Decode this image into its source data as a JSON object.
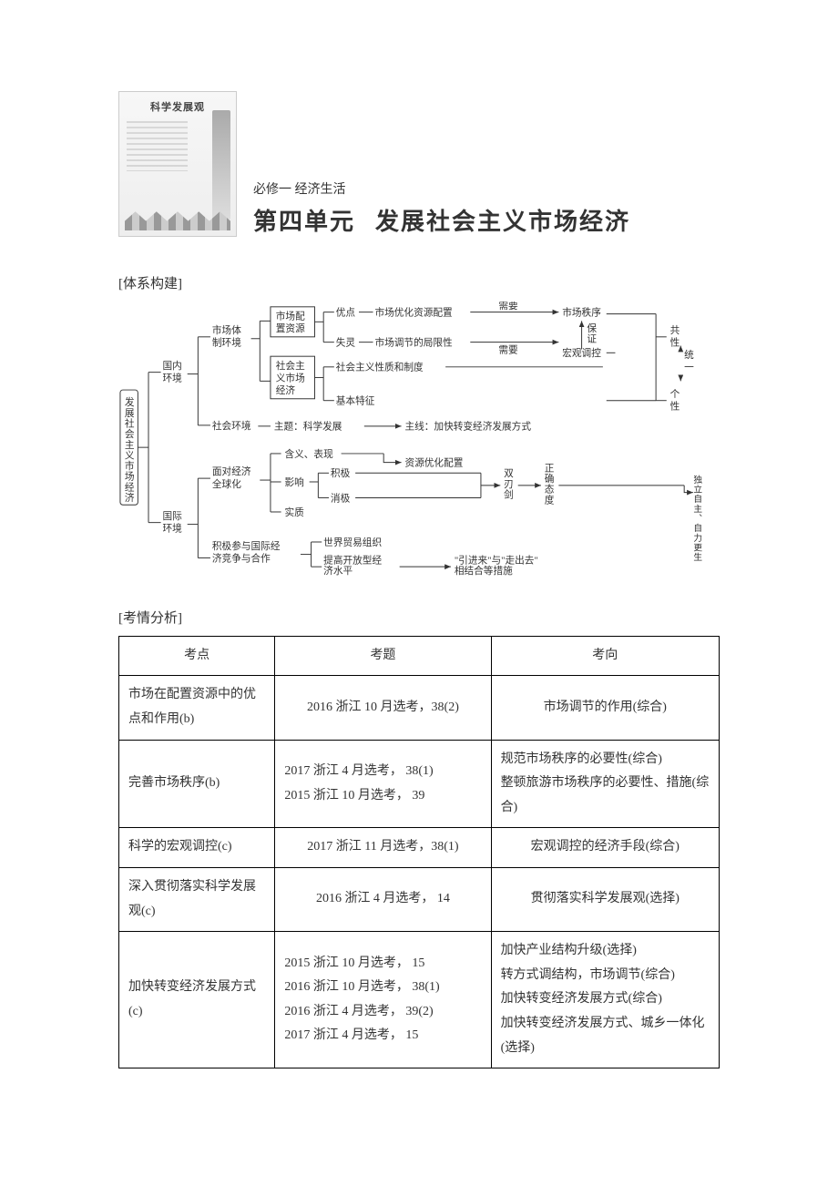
{
  "header": {
    "thumb_kicker": "科学发展观",
    "kicker": "必修一  经济生活",
    "unit_prefix": "第四单元",
    "unit_title": "发展社会主义市场经济"
  },
  "section_labels": {
    "system": "[体系构建]",
    "analysis": "[考情分析]"
  },
  "diagram": {
    "root": "发展社会主义市场经济",
    "l1": {
      "domestic": "国内环境",
      "intl": "国际环境"
    },
    "domestic": {
      "mkt_env": "市场体制环境",
      "soc_env": "社会环境",
      "alloc": "市场配置资源",
      "sme": "社会主义市场经济",
      "adv": "优点",
      "fail": "失灵",
      "adv_r": "市场优化资源配置",
      "fail_r": "市场调节的局限性",
      "need1": "需要",
      "need2": "需要",
      "order": "市场秩序",
      "macro": "宏观调控",
      "guarantee": "保证",
      "common": "共性",
      "unify": "统一",
      "indiv": "个性",
      "sme_nature": "社会主义性质和制度",
      "sme_feat": "基本特征",
      "theme": "主题：科学发展",
      "mainline": "主线：加快转变经济发展方式"
    },
    "intl": {
      "glob": "面对经济全球化",
      "part": "积极参与国际经济竞争与合作",
      "mean": "含义、表现",
      "impact": "影响",
      "essence": "实质",
      "pos": "积极",
      "neg": "消极",
      "optalloc": "资源优化配置",
      "sword": "双刃剑",
      "attitude": "正确态度",
      "indep": "独立自主、自力更生",
      "wto": "世界贸易组织",
      "open": "提高开放型经济水平",
      "inout": "\"引进来\"与\"走出去\"相结合等措施"
    }
  },
  "table": {
    "headers": {
      "topic": "考点",
      "question": "考题",
      "direction": "考向"
    },
    "rows": [
      {
        "topic": "市场在配置资源中的优点和作用(b)",
        "question": "2016 浙江 10 月选考，38(2)",
        "direction": "市场调节的作用(综合)",
        "q_align": "center",
        "d_align": "center"
      },
      {
        "topic": "完善市场秩序(b)",
        "question": "2017 浙江 4 月选考，  38(1)\n2015 浙江 10 月选考，  39",
        "direction": "规范市场秩序的必要性(综合)\n整顿旅游市场秩序的必要性、措施(综合)",
        "q_align": "left",
        "d_align": "left"
      },
      {
        "topic": "科学的宏观调控(c)",
        "question": "2017 浙江 11 月选考，38(1)",
        "direction": "宏观调控的经济手段(综合)",
        "q_align": "center",
        "d_align": "center"
      },
      {
        "topic": "深入贯彻落实科学发展观(c)",
        "question": "2016 浙江 4 月选考，  14",
        "direction": "贯彻落实科学发展观(选择)",
        "q_align": "center",
        "d_align": "center"
      },
      {
        "topic": "加快转变经济发展方式(c)",
        "question": "2015 浙江 10 月选考，  15\n2016 浙江 10 月选考，  38(1)\n2016 浙江 4 月选考，  39(2)\n2017 浙江 4 月选考，  15",
        "direction": "加快产业结构升级(选择)\n转方式调结构，市场调节(综合)\n加快转变经济发展方式(综合)\n加快转变经济发展方式、城乡一体化(选择)",
        "q_align": "left",
        "d_align": "left"
      }
    ]
  },
  "colors": {
    "border": "#000000",
    "bg": "#ffffff",
    "text": "#333333"
  }
}
